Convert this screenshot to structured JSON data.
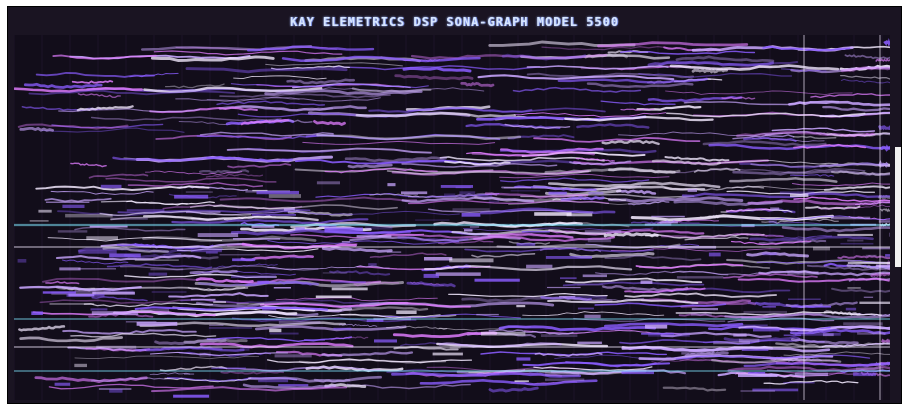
{
  "screen": {
    "title": "KAY ELEMETRICS DSP SONA-GRAPH MODEL 5500"
  },
  "colors": {
    "background": "#1a1422",
    "trace_primary": "#c9a6ff",
    "trace_secondary": "#8a5cff",
    "trace_bright": "#f3e9ff",
    "trace_cyan": "#7fe8ff",
    "trace_magenta": "#e07cff"
  }
}
